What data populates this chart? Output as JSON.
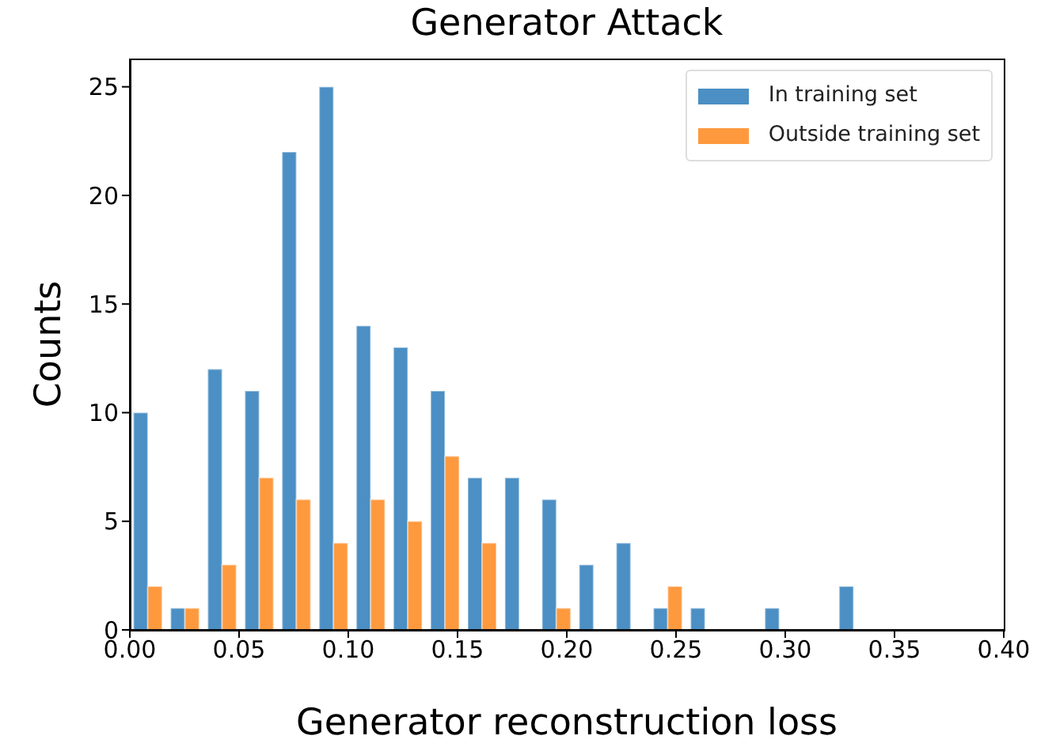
{
  "chart_data": {
    "type": "histogram",
    "title": "Generator Attack",
    "xlabel": "Generator reconstruction loss",
    "ylabel": "Counts",
    "bins": [
      0,
      0.017,
      0.034,
      0.051,
      0.068,
      0.085,
      0.102,
      0.119,
      0.136,
      0.153,
      0.17,
      0.187,
      0.204,
      0.221,
      0.238,
      0.255,
      0.272,
      0.289,
      0.306,
      0.323,
      0.34
    ],
    "series": [
      {
        "name": "In training set",
        "color": "#4b8fc4",
        "values": [
          10,
          1,
          12,
          11,
          22,
          25,
          14,
          13,
          11,
          7,
          7,
          6,
          3,
          4,
          1,
          1,
          0,
          1,
          0,
          2
        ]
      },
      {
        "name": "Outside training set",
        "color": "#ff993e",
        "values": [
          2,
          1,
          3,
          7,
          6,
          4,
          6,
          5,
          8,
          4,
          0,
          1,
          0,
          0,
          2,
          0,
          0,
          0,
          0,
          0
        ]
      }
    ],
    "xlim": [
      0,
      0.4
    ],
    "xticks": [
      {
        "value": 0,
        "label": "0.00"
      },
      {
        "value": 0.05,
        "label": "0.05"
      },
      {
        "value": 0.1,
        "label": "0.10"
      },
      {
        "value": 0.15,
        "label": "0.15"
      },
      {
        "value": 0.2,
        "label": "0.20"
      },
      {
        "value": 0.25,
        "label": "0.25"
      },
      {
        "value": 0.3,
        "label": "0.30"
      },
      {
        "value": 0.35,
        "label": "0.35"
      },
      {
        "value": 0.4,
        "label": "0.40"
      }
    ],
    "ylim": [
      0,
      26.3
    ],
    "yticks": [
      0,
      5,
      10,
      15,
      20,
      25
    ],
    "legend": "top right",
    "grid": false
  }
}
